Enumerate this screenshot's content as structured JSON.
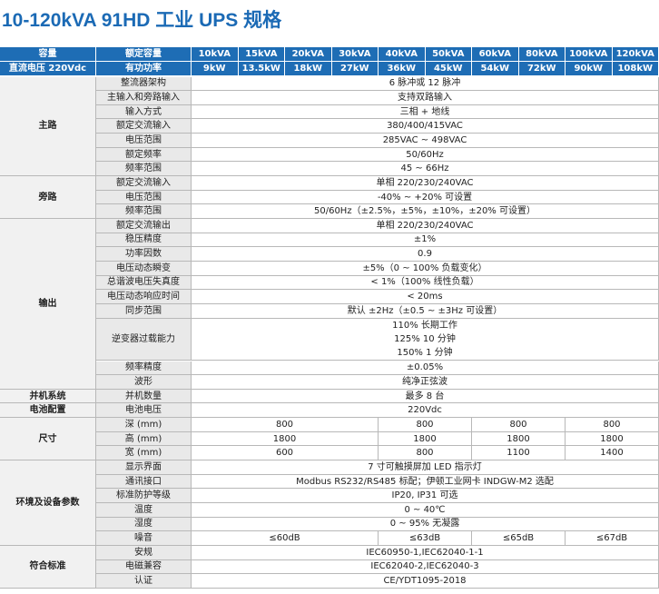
{
  "title": "10-120kVA 91HD 工业 UPS 规格",
  "header": {
    "group_labels": [
      "容量",
      "直流电压 220Vdc"
    ],
    "param_labels": [
      "额定容量",
      "有功功率"
    ],
    "capacities": [
      "10kVA",
      "15kVA",
      "20kVA",
      "30kVA",
      "40kVA",
      "50kVA",
      "60kVA",
      "80kVA",
      "100kVA",
      "120kVA"
    ],
    "powers": [
      "9kW",
      "13.5kW",
      "18kW",
      "27kW",
      "36kW",
      "45kW",
      "54kW",
      "72kW",
      "90kW",
      "108kW"
    ]
  },
  "sections": [
    {
      "name": "主路",
      "rows": [
        {
          "param": "整流器架构",
          "cells": [
            "6 脉冲或 12 脉冲"
          ]
        },
        {
          "param": "主输入和旁路输入",
          "cells": [
            "支持双路输入"
          ]
        },
        {
          "param": "输入方式",
          "cells": [
            "三相 + 地线"
          ]
        },
        {
          "param": "额定交流输入",
          "cells": [
            "380/400/415VAC"
          ]
        },
        {
          "param": "电压范围",
          "cells": [
            "285VAC ~ 498VAC"
          ]
        },
        {
          "param": "额定频率",
          "cells": [
            "50/60Hz"
          ]
        },
        {
          "param": "频率范围",
          "cells": [
            "45 ~ 66Hz"
          ]
        }
      ]
    },
    {
      "name": "旁路",
      "rows": [
        {
          "param": "额定交流输入",
          "cells": [
            "单相 220/230/240VAC"
          ]
        },
        {
          "param": "电压范围",
          "cells": [
            "-40% ~ +20% 可设置"
          ]
        },
        {
          "param": "频率范围",
          "cells": [
            "50/60Hz（±2.5%，±5%，±10%，±20% 可设置）"
          ]
        }
      ]
    },
    {
      "name": "输出",
      "rows": [
        {
          "param": "额定交流输出",
          "cells": [
            "单相 220/230/240VAC"
          ]
        },
        {
          "param": "稳压精度",
          "cells": [
            "±1%"
          ]
        },
        {
          "param": "功率因数",
          "cells": [
            "0.9"
          ]
        },
        {
          "param": "电压动态瞬变",
          "cells": [
            "±5%（0 ~ 100% 负载变化）"
          ]
        },
        {
          "param": "总谐波电压失真度",
          "cells": [
            "< 1%（100% 线性负载）"
          ]
        },
        {
          "param": "电压动态响应时间",
          "cells": [
            "< 20ms"
          ]
        },
        {
          "param": "同步范围",
          "cells": [
            "默认 ±2Hz（±0.5 ~ ±3Hz 可设置）"
          ]
        },
        {
          "param": "逆变器过载能力",
          "cells": [
            [
              "110% 长期工作",
              "125% 10 分钟",
              "150% 1 分钟"
            ]
          ]
        },
        {
          "param": "频率精度",
          "cells": [
            "±0.05%"
          ]
        },
        {
          "param": "波形",
          "cells": [
            "纯净正弦波"
          ]
        }
      ]
    },
    {
      "name": "并机系统",
      "rows": [
        {
          "param": "并机数量",
          "cells": [
            "最多 8 台"
          ]
        }
      ]
    },
    {
      "name": "电池配置",
      "rows": [
        {
          "param": "电池电压",
          "cells": [
            "220Vdc"
          ]
        }
      ]
    },
    {
      "name": "尺寸",
      "rows": [
        {
          "param": "深 (mm)",
          "cells": [
            "800",
            "800",
            "800",
            "800"
          ]
        },
        {
          "param": "高 (mm)",
          "cells": [
            "1800",
            "1800",
            "1800",
            "1800"
          ]
        },
        {
          "param": "宽 (mm)",
          "cells": [
            "600",
            "800",
            "1100",
            "1400"
          ]
        }
      ]
    },
    {
      "name": "环境及设备参数",
      "rows": [
        {
          "param": "显示界面",
          "cells": [
            "7 寸可触摸屏加 LED 指示灯"
          ]
        },
        {
          "param": "通讯接口",
          "cells": [
            "Modbus RS232/RS485 标配；伊顿工业网卡 INDGW-M2 选配"
          ]
        },
        {
          "param": "标准防护等级",
          "cells": [
            "IP20, IP31 可选"
          ]
        },
        {
          "param": "温度",
          "cells": [
            "0 ~ 40℃"
          ]
        },
        {
          "param": "湿度",
          "cells": [
            "0 ~ 95% 无凝露"
          ]
        },
        {
          "param": "噪音",
          "cells": [
            "≤60dB",
            "≤63dB",
            "≤65dB",
            "≤67dB"
          ]
        }
      ]
    },
    {
      "name": "符合标准",
      "rows": [
        {
          "param": "安规",
          "cells": [
            "IEC60950-1,IEC62040-1-1"
          ]
        },
        {
          "param": "电磁兼容",
          "cells": [
            "IEC62040-2,IEC62040-3"
          ]
        },
        {
          "param": "认证",
          "cells": [
            "CE/YDT1095-2018"
          ]
        }
      ]
    }
  ]
}
